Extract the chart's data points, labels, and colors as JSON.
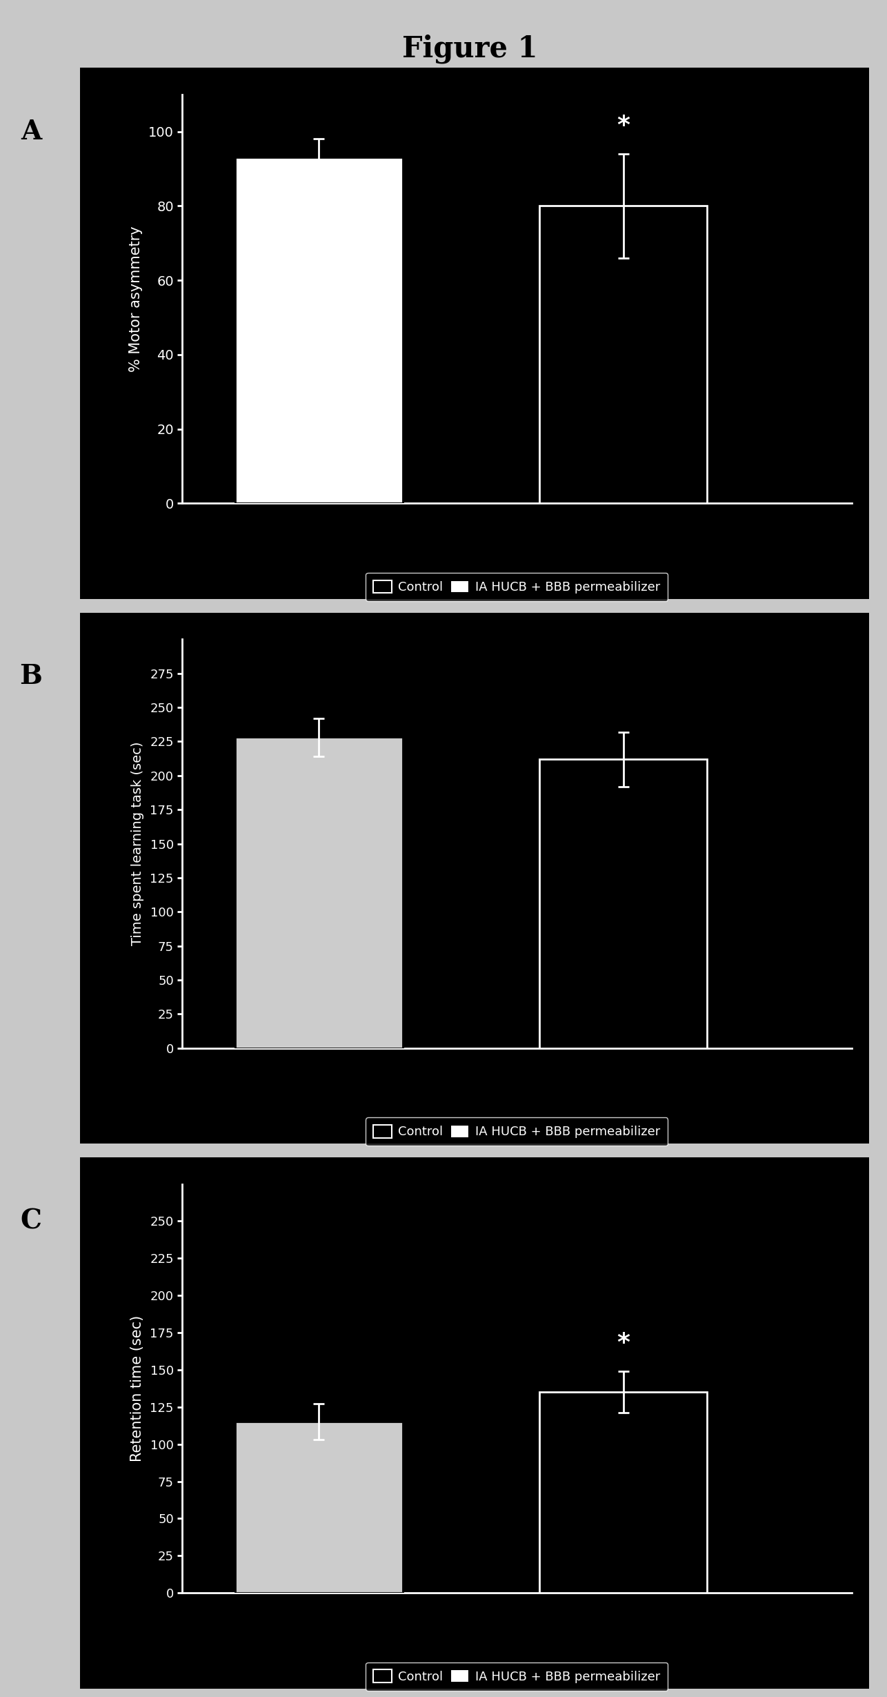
{
  "figure_title": "Figure 1",
  "figure_title_fontsize": 30,
  "figure_title_fontweight": "bold",
  "bg_color": "#c8c8c8",
  "panel_bg": "#000000",
  "white": "#ffffff",
  "black": "#000000",
  "panel_labels": [
    "A",
    "B",
    "C"
  ],
  "panel_label_fontsize": 28,
  "panel_label_fontweight": "bold",
  "panels": [
    {
      "ylabel": "% Motor asymmetry",
      "ylabel_fontsize": 15,
      "ylim": [
        0,
        110
      ],
      "yticks": [
        0,
        20,
        40,
        60,
        80,
        100
      ],
      "ytick_fontsize": 14,
      "bar1_value": 93,
      "bar1_err": 5,
      "bar2_value": 80,
      "bar2_err": 14,
      "bar1_facecolor": "#ffffff",
      "bar1_edgecolor": "#000000",
      "bar2_facecolor": "#000000",
      "bar2_edgecolor": "#ffffff",
      "significance": "*",
      "sig_bar_idx": 1,
      "legend_label1": "Control",
      "legend_label2": "IA HUCB + BBB permeabilizer"
    },
    {
      "ylabel": "Time spent learning task (sec)",
      "ylabel_fontsize": 14,
      "ylim": [
        0,
        300
      ],
      "yticks": [
        0,
        25,
        50,
        75,
        100,
        125,
        150,
        175,
        200,
        225,
        250,
        275
      ],
      "ytick_fontsize": 13,
      "bar1_value": 228,
      "bar1_err": 14,
      "bar2_value": 212,
      "bar2_err": 20,
      "bar1_facecolor": "#cccccc",
      "bar1_edgecolor": "#000000",
      "bar2_facecolor": "#000000",
      "bar2_edgecolor": "#ffffff",
      "significance": null,
      "sig_bar_idx": -1,
      "legend_label1": "Control",
      "legend_label2": "IA HUCB + BBB permeabilizer"
    },
    {
      "ylabel": "Retention time (sec)",
      "ylabel_fontsize": 15,
      "ylim": [
        0,
        275
      ],
      "yticks": [
        0,
        25,
        50,
        75,
        100,
        125,
        150,
        175,
        200,
        225,
        250
      ],
      "ytick_fontsize": 13,
      "bar1_value": 115,
      "bar1_err": 12,
      "bar2_value": 135,
      "bar2_err": 14,
      "bar1_facecolor": "#cccccc",
      "bar1_edgecolor": "#000000",
      "bar2_facecolor": "#000000",
      "bar2_edgecolor": "#ffffff",
      "significance": "*",
      "sig_bar_idx": 1,
      "legend_label1": "Control",
      "legend_label2": "IA HUCB + BBB permeabilizer"
    }
  ]
}
